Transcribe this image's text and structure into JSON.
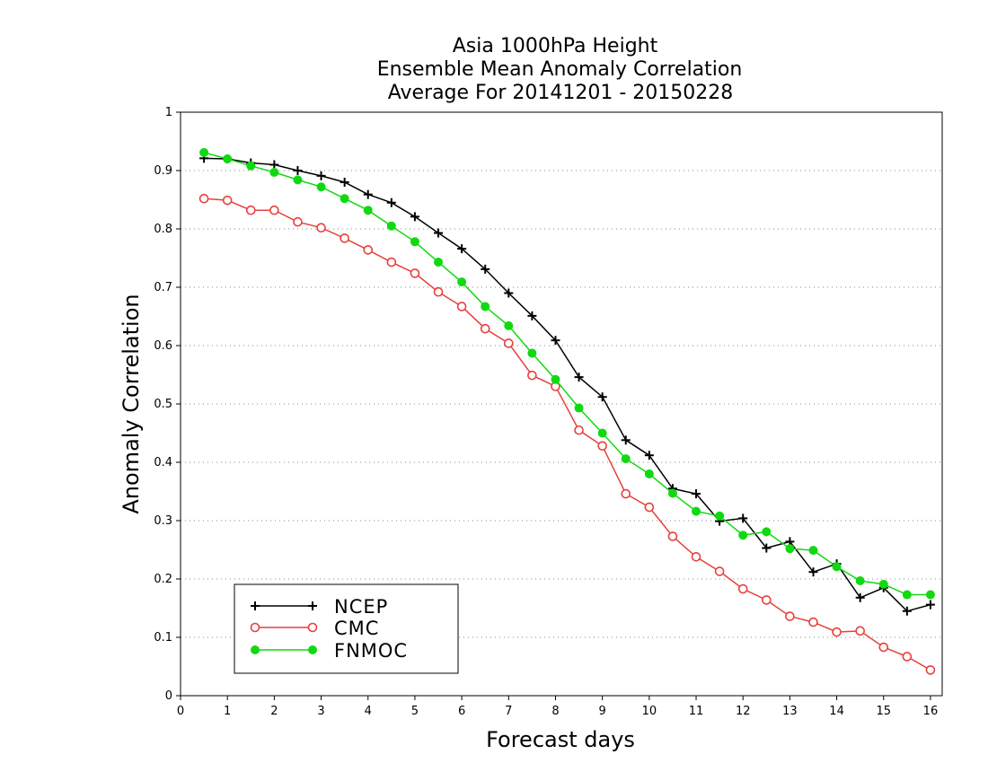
{
  "chart_data": {
    "type": "line",
    "title": [
      "Asia 1000hPa Height",
      "Ensemble Mean Anomaly Correlation",
      "Average For 20141201 - 20150228"
    ],
    "xlabel": "Forecast days",
    "ylabel": "Anomaly Correlation",
    "xlim": [
      0,
      16.25
    ],
    "ylim": [
      0,
      1
    ],
    "x_ticks": [
      "0",
      "1",
      "2",
      "3",
      "4",
      "5",
      "6",
      "7",
      "8",
      "9",
      "10",
      "11",
      "12",
      "13",
      "14",
      "15",
      "16"
    ],
    "y_ticks": [
      "0",
      "0.1",
      "0.2",
      "0.3",
      "0.4",
      "0.5",
      "0.6",
      "0.7",
      "0.8",
      "0.9",
      "1"
    ],
    "grid": "horizontal dotted",
    "legend_position": "bottom-left",
    "x": [
      0.5,
      1,
      1.5,
      2,
      2.5,
      3,
      3.5,
      4,
      4.5,
      5,
      5.5,
      6,
      6.5,
      7,
      7.5,
      8,
      8.5,
      9,
      9.5,
      10,
      10.5,
      11,
      11.5,
      12,
      12.5,
      13,
      13.5,
      14,
      14.5,
      15,
      15.5,
      16
    ],
    "series": [
      {
        "name": "NCEP",
        "color": "#000000",
        "marker": "plus",
        "values": [
          0.921,
          0.92,
          0.913,
          0.91,
          0.9,
          0.891,
          0.88,
          0.859,
          0.845,
          0.821,
          0.793,
          0.766,
          0.731,
          0.69,
          0.651,
          0.609,
          0.546,
          0.512,
          0.438,
          0.412,
          0.355,
          0.346,
          0.299,
          0.304,
          0.253,
          0.264,
          0.212,
          0.226,
          0.168,
          0.185,
          0.145,
          0.156
        ]
      },
      {
        "name": "CMC",
        "color": "#e8403c",
        "marker": "open-circle",
        "values": [
          0.852,
          0.849,
          0.832,
          0.832,
          0.812,
          0.802,
          0.784,
          0.764,
          0.743,
          0.724,
          0.692,
          0.667,
          0.629,
          0.604,
          0.549,
          0.53,
          0.455,
          0.428,
          0.346,
          0.323,
          0.273,
          0.238,
          0.213,
          0.183,
          0.164,
          0.136,
          0.126,
          0.109,
          0.111,
          0.083,
          0.067,
          0.044
        ]
      },
      {
        "name": "FNMOC",
        "color": "#11d911",
        "marker": "filled-circle",
        "values": [
          0.931,
          0.92,
          0.908,
          0.897,
          0.884,
          0.872,
          0.852,
          0.832,
          0.805,
          0.778,
          0.743,
          0.709,
          0.667,
          0.634,
          0.587,
          0.542,
          0.493,
          0.45,
          0.406,
          0.38,
          0.347,
          0.316,
          0.308,
          0.275,
          0.281,
          0.252,
          0.249,
          0.221,
          0.197,
          0.191,
          0.173,
          0.173
        ]
      }
    ]
  }
}
